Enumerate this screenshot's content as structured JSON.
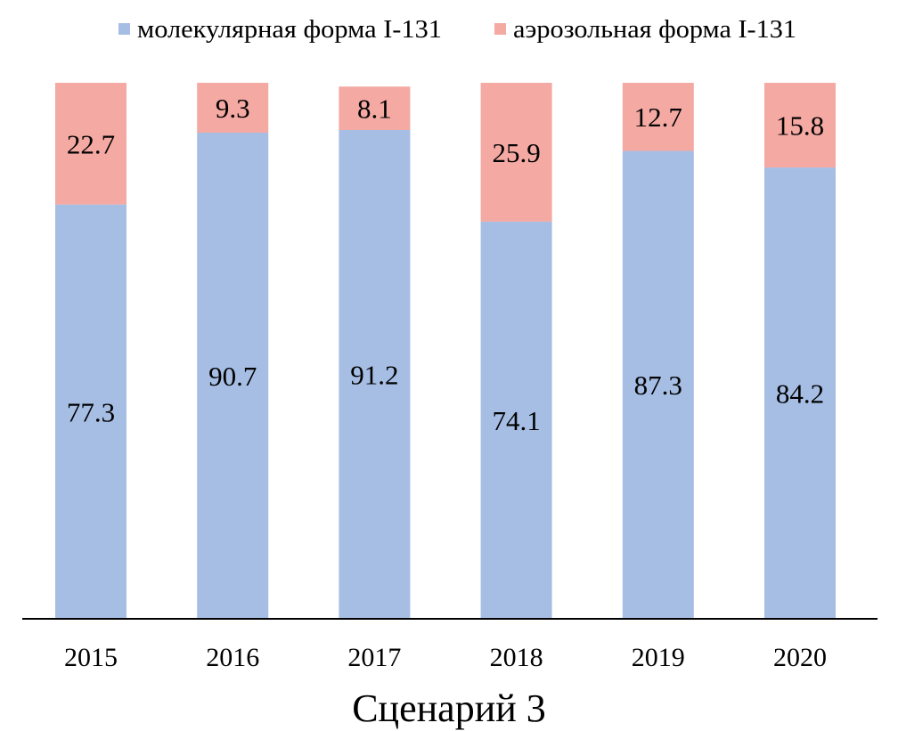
{
  "chart_data": {
    "type": "bar",
    "stacked": true,
    "title": "Сценарий 3",
    "xlabel": "",
    "ylabel": "",
    "ylim": [
      0,
      100
    ],
    "grid": false,
    "legend_position": "top",
    "categories": [
      "2015",
      "2016",
      "2017",
      "2018",
      "2019",
      "2020"
    ],
    "series": [
      {
        "name": "молекулярная форма I-131",
        "color": "#A6BEE4",
        "values": [
          77.3,
          90.7,
          91.2,
          74.1,
          87.3,
          84.2
        ]
      },
      {
        "name": "аэрозольная форма I-131",
        "color": "#F4A9A3",
        "values": [
          22.7,
          9.3,
          8.1,
          25.9,
          12.7,
          15.8
        ]
      }
    ]
  }
}
